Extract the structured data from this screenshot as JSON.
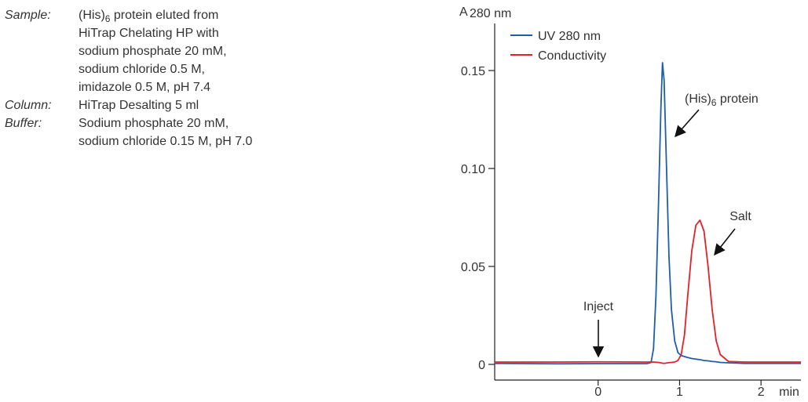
{
  "sample_info": [
    {
      "label": "Sample:",
      "lines": [
        [
          "(His)",
          "6",
          " protein eluted from"
        ],
        "HiTrap Chelating HP with",
        "sodium phosphate 20 mM,",
        "sodium chloride 0.5 M,",
        "imidazole 0.5 M, pH 7.4"
      ]
    },
    {
      "label": "Column:",
      "lines": [
        "HiTrap Desalting 5 ml"
      ]
    },
    {
      "label": "Buffer:",
      "lines": [
        "Sodium phosphate 20 mM,",
        "sodium chloride 0.15 M, pH 7.0"
      ]
    }
  ],
  "chart_data": {
    "type": "line",
    "y_label": [
      "A",
      "280 nm"
    ],
    "x_label": "min",
    "x": [
      -1.27,
      -0.5,
      0,
      0.6,
      0.65,
      0.68,
      0.71,
      0.74,
      0.77,
      0.79,
      0.81,
      0.84,
      0.87,
      0.9,
      0.94,
      0.98,
      1.02,
      1.06,
      1.1,
      1.15,
      1.2,
      1.25,
      1.3,
      1.35,
      1.4,
      1.45,
      1.5,
      1.6,
      1.8,
      2.49
    ],
    "series": [
      {
        "name": "UV 280 nm",
        "color": "#1f5ea8",
        "values": [
          0.0005,
          0.0003,
          0.0004,
          0.0004,
          0.001,
          0.008,
          0.035,
          0.08,
          0.13,
          0.154,
          0.145,
          0.1,
          0.055,
          0.028,
          0.012,
          0.006,
          0.0045,
          0.004,
          0.0035,
          0.003,
          0.0027,
          0.0024,
          0.002,
          0.0018,
          0.0015,
          0.0013,
          0.001,
          0.0008,
          0.0005,
          0.0005
        ]
      },
      {
        "name": "Conductivity",
        "color": "#e3212b",
        "values": [
          0.0012,
          0.0012,
          0.0013,
          0.0012,
          0.0012,
          0.0012,
          0.0011,
          0.001,
          0.0008,
          0.0006,
          0.0005,
          0.0007,
          0.0009,
          0.001,
          0.0012,
          0.002,
          0.005,
          0.015,
          0.035,
          0.058,
          0.071,
          0.0736,
          0.068,
          0.05,
          0.028,
          0.012,
          0.005,
          0.0015,
          0.0012,
          0.0012
        ]
      }
    ],
    "xlim": [
      -1.27,
      2.49
    ],
    "ylim": [
      -0.008,
      0.174
    ],
    "xticks": [
      0,
      1,
      2
    ],
    "yticks": [
      0,
      0.05,
      {
        "value": 0.1,
        "label": "0.10"
      },
      0.15
    ],
    "grid": false,
    "legend": "upper left",
    "annotations": [
      "Inject",
      [
        "(His)",
        "6",
        " protein"
      ],
      "Salt"
    ]
  }
}
